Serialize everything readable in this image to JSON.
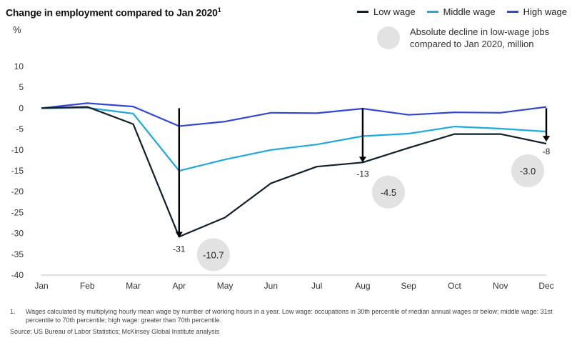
{
  "title": "Change in employment compared to Jan 2020",
  "title_sup": "1",
  "unit": "%",
  "legend": [
    {
      "label": "Low wage",
      "color": "#0f1f2e"
    },
    {
      "label": "Middle wage",
      "color": "#1fa9e1"
    },
    {
      "label": "High wage",
      "color": "#3347d6"
    }
  ],
  "bubble_legend": "Absolute decline in low-wage jobs compared to Jan 2020, million",
  "chart_data": {
    "type": "line",
    "categories": [
      "Jan",
      "Feb",
      "Mar",
      "Apr",
      "May",
      "Jun",
      "Jul",
      "Aug",
      "Sep",
      "Oct",
      "Nov",
      "Dec"
    ],
    "ylim": [
      -40,
      10
    ],
    "yticks": [
      10,
      5,
      0,
      -5,
      -10,
      -15,
      -20,
      -25,
      -30,
      -35,
      -40
    ],
    "series": [
      {
        "name": "Low wage",
        "color": "#0f1f2e",
        "values": [
          0,
          0.3,
          -3.8,
          -30.8,
          -26.2,
          -18,
          -14,
          -13,
          -9.5,
          -6.2,
          -6.2,
          -8.5
        ]
      },
      {
        "name": "Middle wage",
        "color": "#1fa9e1",
        "values": [
          0,
          0.1,
          -1.3,
          -15,
          -12.3,
          -10,
          -8.7,
          -6.7,
          -6.1,
          -4.4,
          -4.9,
          -5.6
        ]
      },
      {
        "name": "High wage",
        "color": "#3347d6",
        "values": [
          0,
          1.2,
          0.4,
          -4.3,
          -3.2,
          -1.1,
          -1.2,
          -0.1,
          -1.6,
          -1.0,
          -1.1,
          0.3
        ]
      }
    ],
    "annotations": [
      {
        "month": "Apr",
        "from": 0,
        "to": -31,
        "label": "-31",
        "bubble": "-10.7"
      },
      {
        "month": "Aug",
        "from": 0,
        "to": -13,
        "label": "-13",
        "bubble": "-4.5"
      },
      {
        "month": "Dec",
        "from": 0,
        "to": -8,
        "label": "-8",
        "bubble": "-3.0"
      }
    ]
  },
  "footnote_number": "1.",
  "footnote": "Wages calculated by multiplying hourly mean wage by number of working hours in a year. Low wage: occupations in 30th percentile of median annual wages or below; middle wage: 31st percentile to 70th percentile; high wage: greater than 70th percentile.",
  "source": "Source: US Bureau of Labor Statistics; McKinsey Global Institute analysis"
}
